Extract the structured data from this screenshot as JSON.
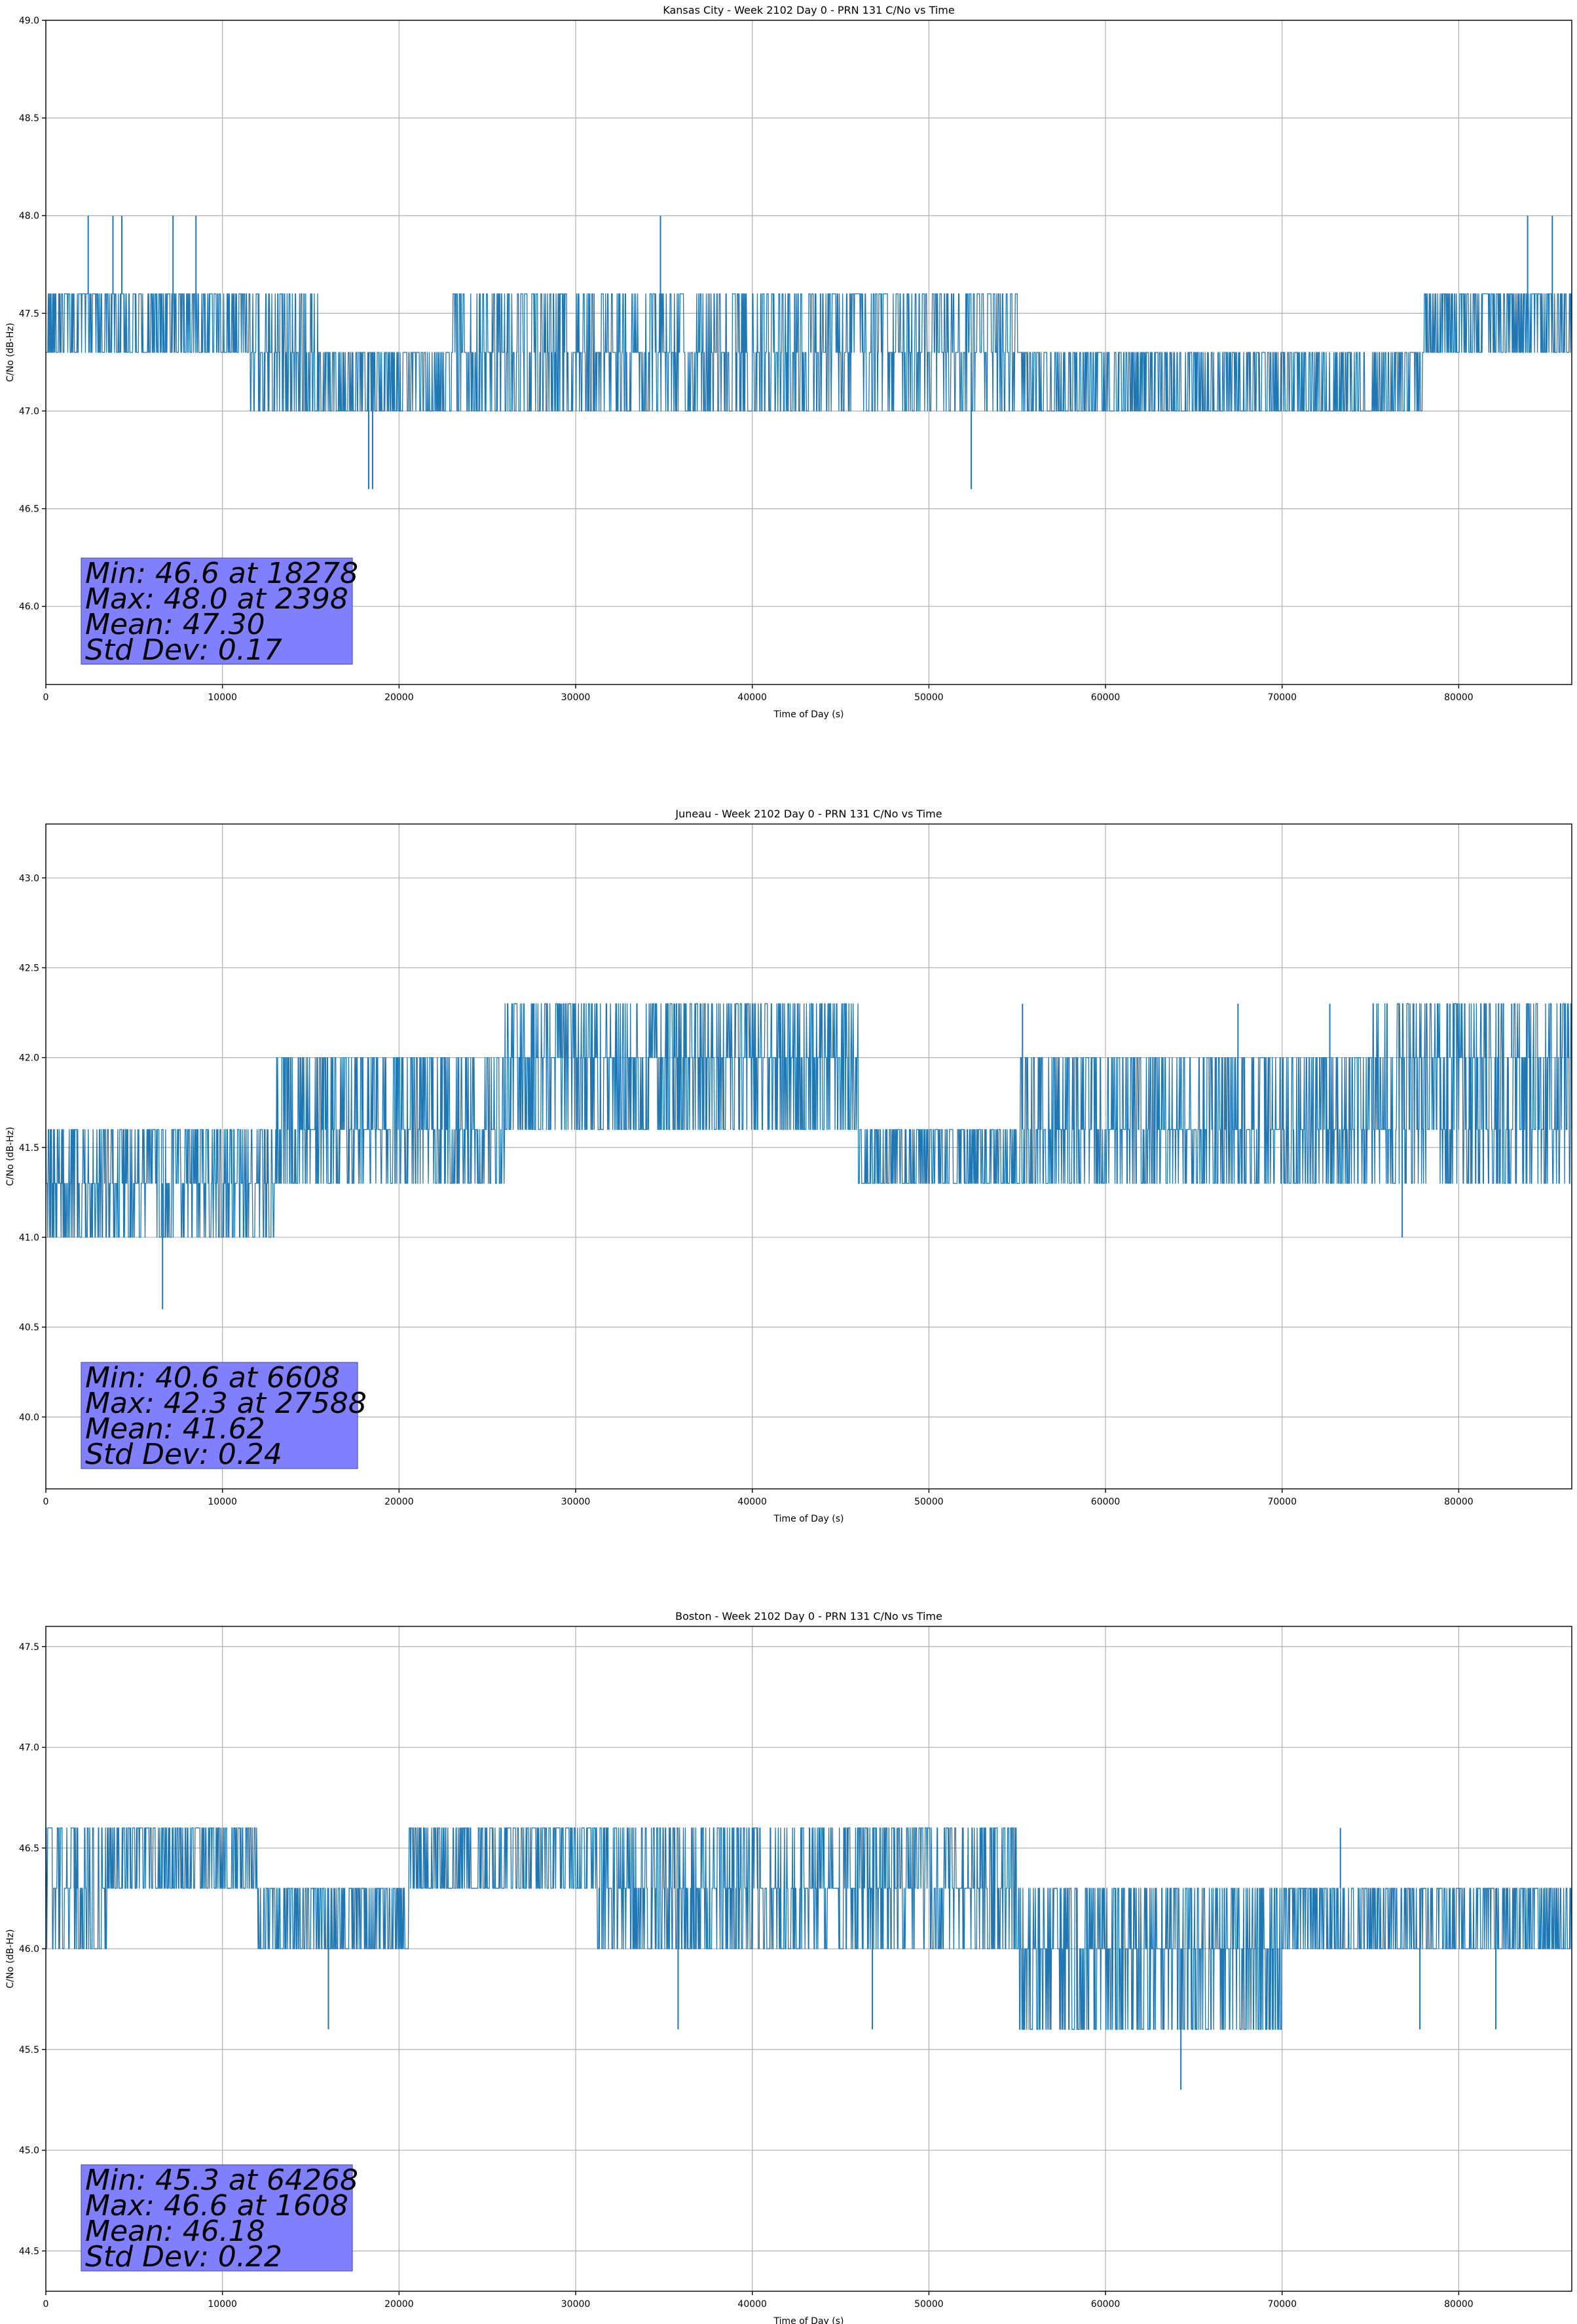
{
  "colors": {
    "series": "#1f77b4",
    "stat_box": "#8080ff",
    "grid": "#b0b0b0"
  },
  "chart_data": [
    {
      "type": "line",
      "title": "Kansas City - Week 2102 Day 0 - PRN 131 C/No vs Time",
      "xlabel": "Time of Day (s)",
      "ylabel": "C/No (dB-Hz)",
      "xlim": [
        0,
        86400
      ],
      "ylim": [
        45.6,
        49.0
      ],
      "xticks": [
        0,
        10000,
        20000,
        30000,
        40000,
        50000,
        60000,
        70000,
        80000
      ],
      "xtick_labels": [
        "0",
        "10000",
        "20000",
        "30000",
        "40000",
        "50000",
        "60000",
        "70000",
        "80000"
      ],
      "yticks": [
        46.0,
        46.5,
        47.0,
        47.5,
        48.0,
        48.5,
        49.0
      ],
      "ytick_labels": [
        "46.0",
        "46.5",
        "47.0",
        "47.5",
        "48.0",
        "48.5",
        "49.0"
      ],
      "grid": true,
      "stats": [
        "Min: 46.6 at 18278",
        "Max: 48.0 at 2398",
        "Mean: 47.30",
        "Std Dev: 0.17"
      ],
      "series": [
        {
          "levels": [
            46.6,
            47.0,
            47.3,
            47.6,
            48.0
          ],
          "segments": [
            {
              "x0": 0,
              "x1": 11500,
              "levels": [
                47.3,
                47.6
              ],
              "density": 0.92
            },
            {
              "x0": 11500,
              "x1": 15500,
              "levels": [
                47.0,
                47.3,
                47.6
              ],
              "density": 0.8
            },
            {
              "x0": 15500,
              "x1": 23000,
              "levels": [
                47.0,
                47.3
              ],
              "density": 0.85
            },
            {
              "x0": 23000,
              "x1": 40000,
              "levels": [
                47.0,
                47.3,
                47.6
              ],
              "density": 0.75
            },
            {
              "x0": 40000,
              "x1": 55000,
              "levels": [
                47.0,
                47.3,
                47.6
              ],
              "density": 0.7
            },
            {
              "x0": 55000,
              "x1": 78000,
              "levels": [
                47.0,
                47.3
              ],
              "density": 0.8
            },
            {
              "x0": 78000,
              "x1": 86400,
              "levels": [
                47.3,
                47.6
              ],
              "density": 0.9
            }
          ],
          "spikes": [
            {
              "x": 2398,
              "y": 48.0
            },
            {
              "x": 3800,
              "y": 48.0
            },
            {
              "x": 4300,
              "y": 48.0
            },
            {
              "x": 7200,
              "y": 48.0
            },
            {
              "x": 8500,
              "y": 48.0
            },
            {
              "x": 34800,
              "y": 48.0
            },
            {
              "x": 83900,
              "y": 48.0
            },
            {
              "x": 85300,
              "y": 48.0
            },
            {
              "x": 18278,
              "y": 46.6
            },
            {
              "x": 18500,
              "y": 46.6
            },
            {
              "x": 52400,
              "y": 46.6
            }
          ]
        }
      ]
    },
    {
      "type": "line",
      "title": "Juneau - Week 2102 Day 0 - PRN 131 C/No vs Time",
      "xlabel": "Time of Day (s)",
      "ylabel": "C/No (dB-Hz)",
      "xlim": [
        0,
        86400
      ],
      "ylim": [
        39.6,
        43.3
      ],
      "xticks": [
        0,
        10000,
        20000,
        30000,
        40000,
        50000,
        60000,
        70000,
        80000
      ],
      "xtick_labels": [
        "0",
        "10000",
        "20000",
        "30000",
        "40000",
        "50000",
        "60000",
        "70000",
        "80000"
      ],
      "yticks": [
        40.0,
        40.5,
        41.0,
        41.5,
        42.0,
        42.5,
        43.0
      ],
      "ytick_labels": [
        "40.0",
        "40.5",
        "41.0",
        "41.5",
        "42.0",
        "42.5",
        "43.0"
      ],
      "grid": true,
      "stats": [
        "Min: 40.6 at 6608",
        "Max: 42.3 at 27588",
        "Mean: 41.62",
        "Std Dev: 0.24"
      ],
      "series": [
        {
          "levels": [
            40.6,
            41.0,
            41.3,
            41.6,
            42.0,
            42.3
          ],
          "segments": [
            {
              "x0": 0,
              "x1": 13000,
              "levels": [
                41.0,
                41.3,
                41.6
              ],
              "density": 0.85
            },
            {
              "x0": 13000,
              "x1": 26000,
              "levels": [
                41.3,
                41.6,
                42.0
              ],
              "density": 0.8
            },
            {
              "x0": 26000,
              "x1": 46000,
              "levels": [
                41.6,
                42.0,
                42.3
              ],
              "density": 0.88
            },
            {
              "x0": 46000,
              "x1": 55000,
              "levels": [
                41.3,
                41.6
              ],
              "density": 0.9
            },
            {
              "x0": 55000,
              "x1": 75000,
              "levels": [
                41.3,
                41.6,
                42.0
              ],
              "density": 0.82
            },
            {
              "x0": 75000,
              "x1": 86400,
              "levels": [
                41.3,
                41.6,
                42.0,
                42.3
              ],
              "density": 0.85
            }
          ],
          "spikes": [
            {
              "x": 6608,
              "y": 40.6
            },
            {
              "x": 76800,
              "y": 41.0
            },
            {
              "x": 27588,
              "y": 42.3
            },
            {
              "x": 29200,
              "y": 42.3
            },
            {
              "x": 35600,
              "y": 42.3
            },
            {
              "x": 37500,
              "y": 42.3
            },
            {
              "x": 55300,
              "y": 42.3
            },
            {
              "x": 67500,
              "y": 42.3
            },
            {
              "x": 72700,
              "y": 42.3
            },
            {
              "x": 79500,
              "y": 42.3
            },
            {
              "x": 83000,
              "y": 42.3
            }
          ]
        }
      ]
    },
    {
      "type": "line",
      "title": "Boston - Week 2102 Day 0 - PRN 131 C/No vs Time",
      "xlabel": "Time of Day (s)",
      "ylabel": "C/No (dB-Hz)",
      "xlim": [
        0,
        86400
      ],
      "ylim": [
        44.3,
        47.6
      ],
      "xticks": [
        0,
        10000,
        20000,
        30000,
        40000,
        50000,
        60000,
        70000,
        80000
      ],
      "xtick_labels": [
        "0",
        "10000",
        "20000",
        "30000",
        "40000",
        "50000",
        "60000",
        "70000",
        "80000"
      ],
      "yticks": [
        44.5,
        45.0,
        45.5,
        46.0,
        46.5,
        47.0,
        47.5
      ],
      "ytick_labels": [
        "44.5",
        "45.0",
        "45.5",
        "46.0",
        "46.5",
        "47.0",
        "47.5"
      ],
      "grid": true,
      "stats": [
        "Min: 45.3 at 64268",
        "Max: 46.6 at 1608",
        "Mean: 46.18",
        "Std Dev: 0.22"
      ],
      "series": [
        {
          "levels": [
            45.3,
            45.6,
            46.0,
            46.3,
            46.6
          ],
          "segments": [
            {
              "x0": 0,
              "x1": 3500,
              "levels": [
                46.0,
                46.3,
                46.6
              ],
              "density": 0.75
            },
            {
              "x0": 3500,
              "x1": 12000,
              "levels": [
                46.3,
                46.6
              ],
              "density": 0.9
            },
            {
              "x0": 12000,
              "x1": 20500,
              "levels": [
                46.0,
                46.3
              ],
              "density": 0.85
            },
            {
              "x0": 20500,
              "x1": 31000,
              "levels": [
                46.3,
                46.6
              ],
              "density": 0.88
            },
            {
              "x0": 31000,
              "x1": 55000,
              "levels": [
                46.0,
                46.3,
                46.6
              ],
              "density": 0.8
            },
            {
              "x0": 55000,
              "x1": 70000,
              "levels": [
                45.6,
                46.0,
                46.3
              ],
              "density": 0.85
            },
            {
              "x0": 70000,
              "x1": 86400,
              "levels": [
                46.0,
                46.3
              ],
              "density": 0.85
            }
          ],
          "spikes": [
            {
              "x": 64268,
              "y": 45.3
            },
            {
              "x": 16000,
              "y": 45.6
            },
            {
              "x": 35800,
              "y": 45.6
            },
            {
              "x": 46800,
              "y": 45.6
            },
            {
              "x": 77800,
              "y": 45.6
            },
            {
              "x": 82100,
              "y": 45.6
            },
            {
              "x": 1608,
              "y": 46.6
            },
            {
              "x": 48200,
              "y": 46.6
            },
            {
              "x": 73300,
              "y": 46.6
            }
          ]
        }
      ]
    }
  ]
}
